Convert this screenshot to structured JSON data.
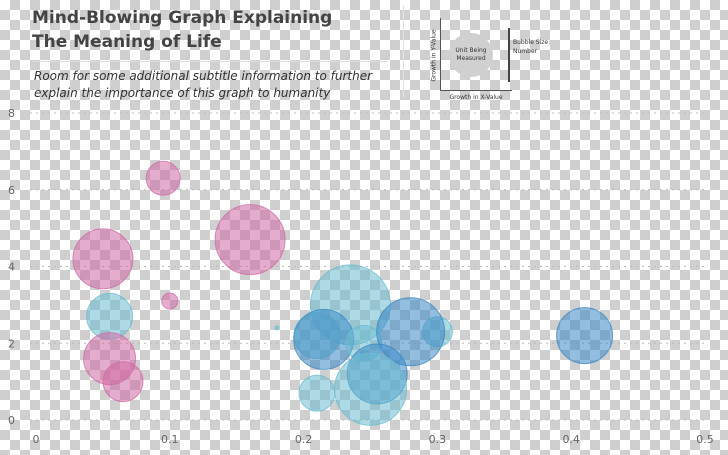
{
  "header": {
    "title": "Mind-Blowing Graph Explaining The Meaning of Life",
    "subtitle": "Room for some additional subtitle information to further explain the importance of this graph to humanity"
  },
  "legend": {
    "y_label": "Growth in Y-Value",
    "x_label": "Growth in X-Value",
    "bubble_label": "Unit Being Measured",
    "size_label": "Bubble Size: Number"
  },
  "colors": {
    "pink": "#d06aa4",
    "teal": "#6bbccf",
    "blue": "#3a88c4",
    "axis": "#666666"
  },
  "chart_data": {
    "type": "scatter",
    "title": "Mind-Blowing Graph Explaining The Meaning of Life",
    "xlim": [
      0,
      0.5
    ],
    "ylim": [
      0,
      8
    ],
    "x_ticks": [
      "0",
      "0.1",
      "0.2",
      "0.3",
      "0.4",
      "0.5"
    ],
    "y_ticks": [
      "0",
      "2",
      "4",
      "6",
      "8"
    ],
    "grid": true,
    "points": [
      {
        "x": 0.095,
        "y": 6.3,
        "size": 17,
        "color": "pink"
      },
      {
        "x": 0.05,
        "y": 4.2,
        "size": 30,
        "color": "pink"
      },
      {
        "x": 0.16,
        "y": 4.7,
        "size": 35,
        "color": "pink"
      },
      {
        "x": 0.1,
        "y": 3.1,
        "size": 8,
        "color": "pink"
      },
      {
        "x": 0.055,
        "y": 2.7,
        "size": 23,
        "color": "teal"
      },
      {
        "x": 0.055,
        "y": 1.6,
        "size": 26,
        "color": "pink"
      },
      {
        "x": 0.065,
        "y": 1.0,
        "size": 20,
        "color": "pink"
      },
      {
        "x": 0.18,
        "y": 2.4,
        "size": 2,
        "color": "teal"
      },
      {
        "x": 0.235,
        "y": 3.0,
        "size": 40,
        "color": "teal"
      },
      {
        "x": 0.21,
        "y": 2.2,
        "size": 23,
        "color": "teal"
      },
      {
        "x": 0.215,
        "y": 2.1,
        "size": 30,
        "color": "blue"
      },
      {
        "x": 0.245,
        "y": 2.0,
        "size": 18,
        "color": "teal"
      },
      {
        "x": 0.3,
        "y": 2.3,
        "size": 15,
        "color": "teal"
      },
      {
        "x": 0.28,
        "y": 2.3,
        "size": 34,
        "color": "blue"
      },
      {
        "x": 0.255,
        "y": 1.2,
        "size": 30,
        "color": "blue"
      },
      {
        "x": 0.25,
        "y": 0.8,
        "size": 36,
        "color": "teal"
      },
      {
        "x": 0.21,
        "y": 0.7,
        "size": 18,
        "color": "teal"
      },
      {
        "x": 0.41,
        "y": 2.2,
        "size": 28,
        "color": "blue"
      }
    ]
  }
}
